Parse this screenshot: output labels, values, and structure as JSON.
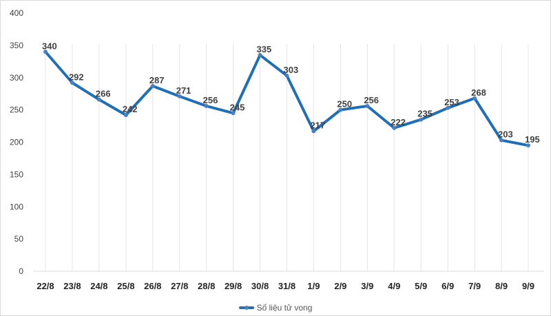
{
  "chart_data": {
    "type": "line",
    "title": "",
    "xlabel": "",
    "ylabel": "",
    "categories": [
      "22/8",
      "23/8",
      "24/8",
      "25/8",
      "26/8",
      "27/8",
      "28/8",
      "29/8",
      "30/8",
      "31/8",
      "1/9",
      "2/9",
      "3/9",
      "4/9",
      "5/9",
      "6/9",
      "7/9",
      "8/9",
      "9/9"
    ],
    "series": [
      {
        "name": "Số liệu tử vong",
        "color": "#1f6fb8",
        "values": [
          340,
          292,
          266,
          242,
          287,
          271,
          256,
          245,
          335,
          303,
          217,
          250,
          256,
          222,
          235,
          253,
          268,
          203,
          195
        ]
      }
    ],
    "ylim": [
      0,
      400
    ],
    "yticks": [
      0,
      50,
      100,
      150,
      200,
      250,
      300,
      350,
      400
    ],
    "grid": "vertical",
    "legend": "bottom-center",
    "data_labels": true
  }
}
